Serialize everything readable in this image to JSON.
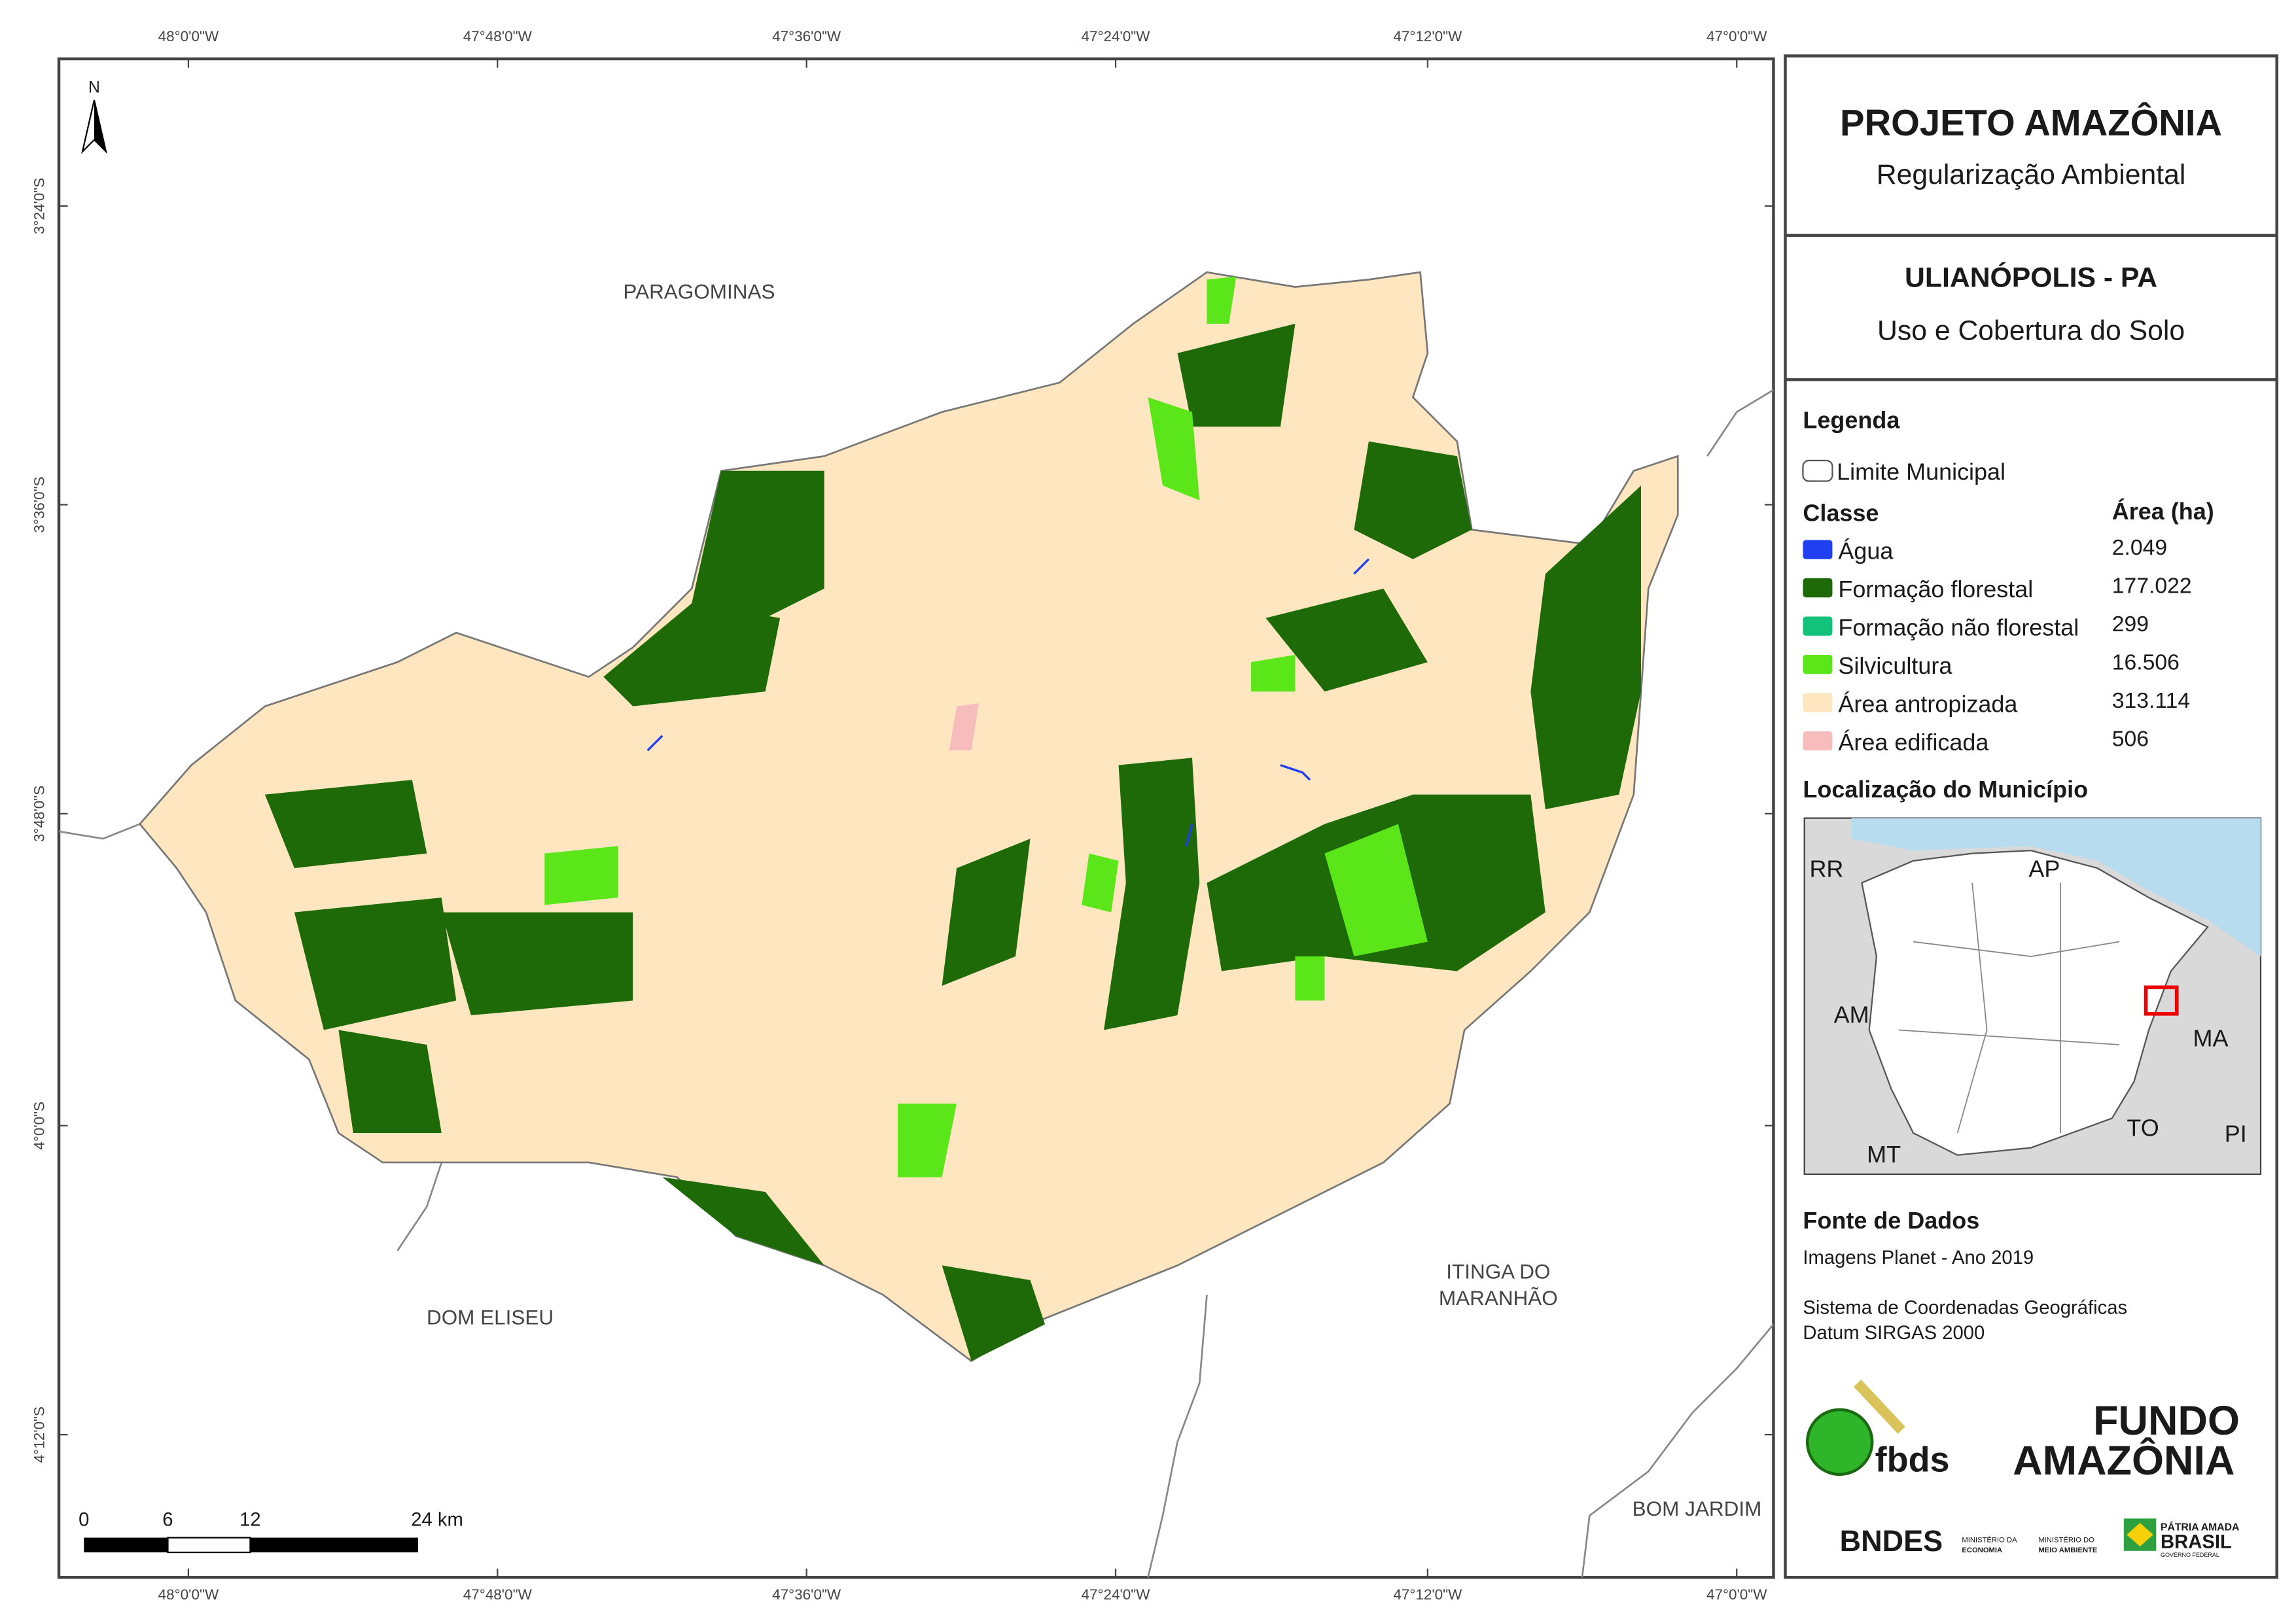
{
  "header": {
    "title": "PROJETO AMAZÔNIA",
    "subtitle": "Regularização Ambiental"
  },
  "municipality": {
    "name": "ULIANÓPOLIS - PA",
    "theme": "Uso e Cobertura do Solo"
  },
  "legend": {
    "title": "Legenda",
    "boundary": "Limite Municipal",
    "class_header": "Classe",
    "area_header": "Área (ha)",
    "classes": [
      {
        "name": "Água",
        "area": "2.049",
        "color": "#1f3ff0"
      },
      {
        "name": "Formação florestal",
        "area": "177.022",
        "color": "#1e6a08"
      },
      {
        "name": "Formação não florestal",
        "area": "299",
        "color": "#13c27a"
      },
      {
        "name": "Silvicultura",
        "area": "16.506",
        "color": "#5be61a"
      },
      {
        "name": "Área antropizada",
        "area": "313.114",
        "color": "#fde6c0"
      },
      {
        "name": "Área edificada",
        "area": "506",
        "color": "#f7bcbc"
      }
    ]
  },
  "location": {
    "title": "Localização do Município",
    "labels": [
      "RR",
      "AP",
      "AM",
      "MA",
      "TO",
      "MT",
      "PI"
    ]
  },
  "sources": {
    "title": "Fonte de Dados",
    "imagery": "Imagens Planet - Ano 2019",
    "crs": "Sistema de Coordenadas Geográficas",
    "datum": "Datum SIRGAS 2000"
  },
  "logos": {
    "fbds": "fbds",
    "fundo_1": "FUNDO",
    "fundo_2": "AMAZÔNIA",
    "bndes": "BNDES",
    "min_eco_1": "MINISTÉRIO DA",
    "min_eco_2": "ECONOMIA",
    "min_amb_1": "MINISTÉRIO DO",
    "min_amb_2": "MEIO AMBIENTE",
    "brasil_1": "PÁTRIA AMADA",
    "brasil_2": "BRASIL",
    "brasil_3": "GOVERNO FEDERAL"
  },
  "map": {
    "north": "N",
    "longitudes": [
      "48°0'0\"W",
      "47°48'0\"W",
      "47°36'0\"W",
      "47°24'0\"W",
      "47°12'0\"W",
      "47°0'0\"W"
    ],
    "latitudes": [
      "3°24'0\"S",
      "3°36'0\"S",
      "3°48'0\"S",
      "4°0'0\"S",
      "4°12'0\"S"
    ],
    "places": [
      "PARAGOMINAS",
      "DOM ELISEU",
      "ITINGA DO",
      "MARANHÃO",
      "BOM JARDIM"
    ],
    "scale_labels": [
      "0",
      "6",
      "12",
      "24 km"
    ]
  }
}
